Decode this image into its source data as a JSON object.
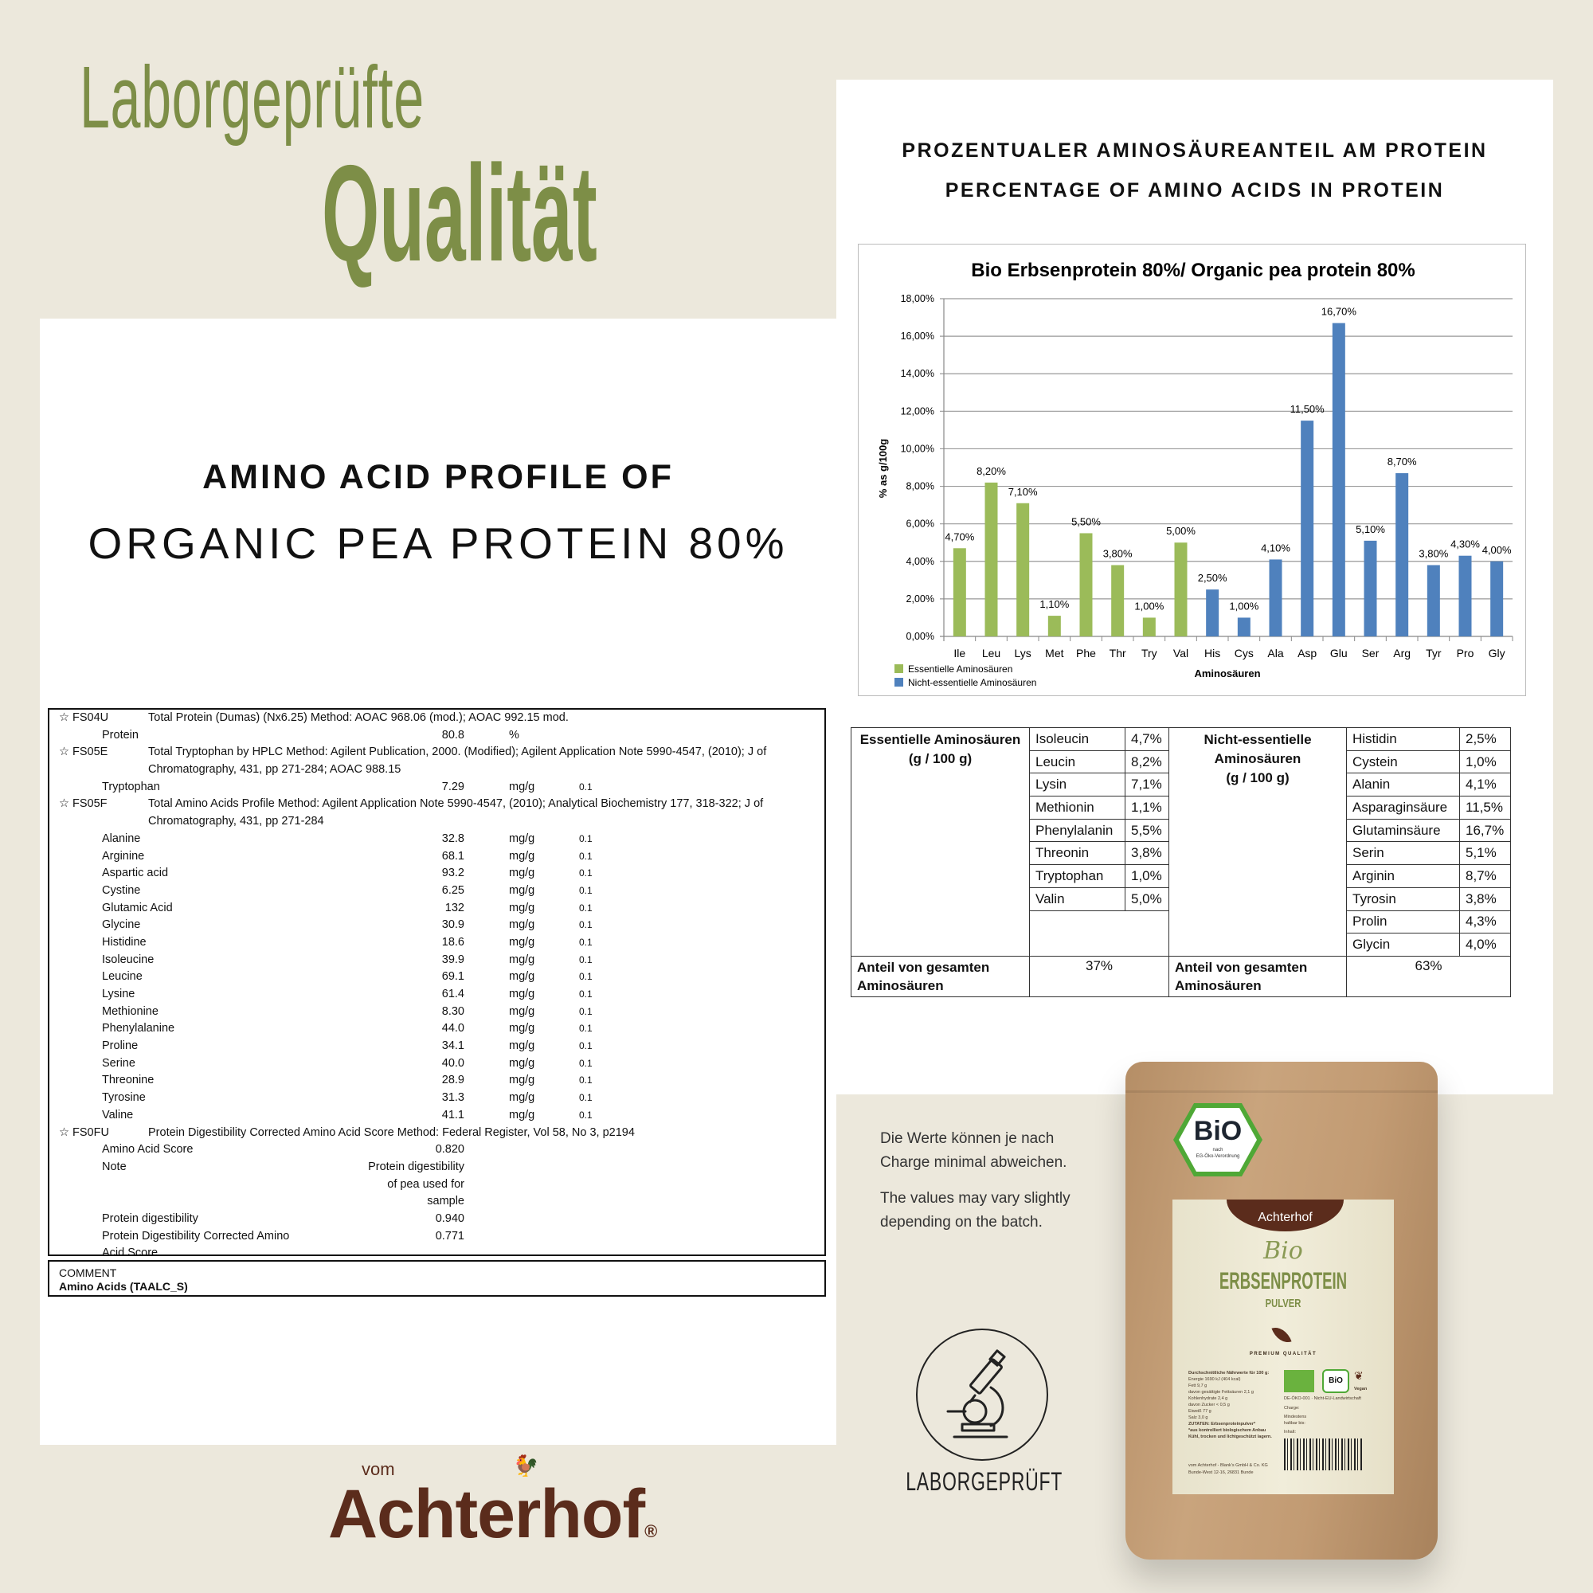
{
  "headline": {
    "line1": "Laborgeprüfte",
    "line2": "Qualität"
  },
  "left": {
    "heading1": "AMINO ACID PROFILE OF",
    "heading2": "ORGANIC PEA PROTEIN 80%"
  },
  "right": {
    "heading1": "PROZENTUALER AMINOSÄUREANTEIL AM PROTEIN",
    "heading2": "PERCENTAGE OF AMINO ACIDS IN PROTEIN"
  },
  "lab_report": {
    "rows": [
      {
        "code": "☆ FS04U",
        "text": "Total Protein (Dumas) (Nx6.25)    Method: AOAC 968.06 (mod.); AOAC 992.15 mod."
      },
      {
        "name": "Protein",
        "value": "80.8",
        "unit": "%",
        "loq": ""
      },
      {
        "code": "☆ FS05E",
        "text": "Total Tryptophan by HPLC    Method: Agilent Publication, 2000. (Modified); Agilent Application Note 5990-4547, (2010); J of"
      },
      {
        "code": "",
        "text": "Chromatography, 431, pp 271-284; AOAC 988.15"
      },
      {
        "name": "Tryptophan",
        "value": "7.29",
        "unit": "mg/g",
        "loq": "0.1"
      },
      {
        "code": "☆ FS05F",
        "text": "Total Amino Acids Profile    Method: Agilent Application Note 5990-4547, (2010); Analytical Biochemistry 177, 318-322; J of"
      },
      {
        "code": "",
        "text": "Chromatography, 431, pp 271-284"
      },
      {
        "name": "Alanine",
        "value": "32.8",
        "unit": "mg/g",
        "loq": "0.1"
      },
      {
        "name": "Arginine",
        "value": "68.1",
        "unit": "mg/g",
        "loq": "0.1"
      },
      {
        "name": "Aspartic acid",
        "value": "93.2",
        "unit": "mg/g",
        "loq": "0.1"
      },
      {
        "name": "Cystine",
        "value": "6.25",
        "unit": "mg/g",
        "loq": "0.1"
      },
      {
        "name": "Glutamic Acid",
        "value": "132",
        "unit": "mg/g",
        "loq": "0.1"
      },
      {
        "name": "Glycine",
        "value": "30.9",
        "unit": "mg/g",
        "loq": "0.1"
      },
      {
        "name": "Histidine",
        "value": "18.6",
        "unit": "mg/g",
        "loq": "0.1"
      },
      {
        "name": "Isoleucine",
        "value": "39.9",
        "unit": "mg/g",
        "loq": "0.1"
      },
      {
        "name": "Leucine",
        "value": "69.1",
        "unit": "mg/g",
        "loq": "0.1"
      },
      {
        "name": "Lysine",
        "value": "61.4",
        "unit": "mg/g",
        "loq": "0.1"
      },
      {
        "name": "Methionine",
        "value": "8.30",
        "unit": "mg/g",
        "loq": "0.1"
      },
      {
        "name": "Phenylalanine",
        "value": "44.0",
        "unit": "mg/g",
        "loq": "0.1"
      },
      {
        "name": "Proline",
        "value": "34.1",
        "unit": "mg/g",
        "loq": "0.1"
      },
      {
        "name": "Serine",
        "value": "40.0",
        "unit": "mg/g",
        "loq": "0.1"
      },
      {
        "name": "Threonine",
        "value": "28.9",
        "unit": "mg/g",
        "loq": "0.1"
      },
      {
        "name": "Tyrosine",
        "value": "31.3",
        "unit": "mg/g",
        "loq": "0.1"
      },
      {
        "name": "Valine",
        "value": "41.1",
        "unit": "mg/g",
        "loq": "0.1"
      },
      {
        "code": "☆ FS0FU",
        "text": "Protein Digestibility Corrected Amino Acid Score    Method: Federal Register, Vol 58, No 3, p2194"
      },
      {
        "name": "Amino Acid Score",
        "value": "0.820",
        "unit": "",
        "loq": ""
      },
      {
        "name": "Note",
        "value": "Protein digestibility",
        "unit": "",
        "loq": ""
      },
      {
        "name": "",
        "value": "of pea used for",
        "unit": "",
        "loq": ""
      },
      {
        "name": "",
        "value": "sample",
        "unit": "",
        "loq": ""
      },
      {
        "name": "Protein digestibility",
        "value": "0.940",
        "unit": "",
        "loq": ""
      },
      {
        "name": "Protein Digestibility Corrected Amino",
        "value": "0.771",
        "unit": "",
        "loq": ""
      },
      {
        "name": "Acid Score",
        "value": "",
        "unit": "",
        "loq": ""
      }
    ],
    "comment_label": "COMMENT",
    "comment_value": "Amino Acids (TAALC_S)"
  },
  "chart_data": {
    "type": "bar",
    "title": "Bio Erbsenprotein  80%/ Organic pea protein 80%",
    "xlabel": "Aminosäuren",
    "ylabel": "% as g/100g",
    "ylim": [
      0,
      18
    ],
    "yticks": [
      "0,00%",
      "2,00%",
      "4,00%",
      "6,00%",
      "8,00%",
      "10,00%",
      "12,00%",
      "14,00%",
      "16,00%",
      "18,00%"
    ],
    "grid": true,
    "legend_placement": "bottom-left",
    "categories": [
      "Ile",
      "Leu",
      "Lys",
      "Met",
      "Phe",
      "Thr",
      "Try",
      "Val",
      "His",
      "Cys",
      "Ala",
      "Asp",
      "Glu",
      "Ser",
      "Arg",
      "Tyr",
      "Pro",
      "Gly"
    ],
    "values": [
      4.7,
      8.2,
      7.1,
      1.1,
      5.5,
      3.8,
      1.0,
      5.0,
      2.5,
      1.0,
      4.1,
      11.5,
      16.7,
      5.1,
      8.7,
      3.8,
      4.3,
      4.0
    ],
    "data_labels": [
      "4,70%",
      "8,20%",
      "7,10%",
      "1,10%",
      "5,50%",
      "3,80%",
      "1,00%",
      "5,00%",
      "2,50%",
      "1,00%",
      "4,10%",
      "11,50%",
      "16,70%",
      "5,10%",
      "8,70%",
      "3,80%",
      "4,30%",
      "4,00%"
    ],
    "groups": [
      "essential",
      "essential",
      "essential",
      "essential",
      "essential",
      "essential",
      "essential",
      "essential",
      "non",
      "non",
      "non",
      "non",
      "non",
      "non",
      "non",
      "non",
      "non",
      "non"
    ],
    "series": [
      {
        "name": "Essentielle Aminosäuren",
        "color": "#9bbb59"
      },
      {
        "name": "Nicht-essentielle Aminosäuren",
        "color": "#4f81bd"
      }
    ]
  },
  "amino_table": {
    "essential_header": "Essentielle Aminosäuren\n(g / 100 g)",
    "nonessential_header": "Nicht-essentielle\nAminosäuren\n(g / 100 g)",
    "essential": [
      [
        "Isoleucin",
        "4,7%"
      ],
      [
        "Leucin",
        "8,2%"
      ],
      [
        "Lysin",
        "7,1%"
      ],
      [
        "Methionin",
        "1,1%"
      ],
      [
        "Phenylalanin",
        "5,5%"
      ],
      [
        "Threonin",
        "3,8%"
      ],
      [
        "Tryptophan",
        "1,0%"
      ],
      [
        "Valin",
        "5,0%"
      ]
    ],
    "nonessential": [
      [
        "Histidin",
        "2,5%"
      ],
      [
        "Cystein",
        "1,0%"
      ],
      [
        "Alanin",
        "4,1%"
      ],
      [
        "Asparaginsäure",
        "11,5%"
      ],
      [
        "Glutaminsäure",
        "16,7%"
      ],
      [
        "Serin",
        "5,1%"
      ],
      [
        "Arginin",
        "8,7%"
      ],
      [
        "Tyrosin",
        "3,8%"
      ],
      [
        "Prolin",
        "4,3%"
      ],
      [
        "Glycin",
        "4,0%"
      ]
    ],
    "share_label": "Anteil von gesamten\nAminosäuren",
    "essential_share": "37%",
    "nonessential_share": "63%"
  },
  "disclaimer": {
    "de1": "Die Werte können je nach",
    "de2": "Charge minimal abweichen.",
    "en1": "The values may vary slightly",
    "en2": "depending on the batch."
  },
  "lab_badge": {
    "label": "LABORGEPRÜFT",
    "icon": "microscope-icon"
  },
  "logo": {
    "small": "vom",
    "name": "Achterhof",
    "mark": "®"
  },
  "bag": {
    "bio_seal": "BiO",
    "bio_seal_sub1": "nach",
    "bio_seal_sub2": "EG-Öko-Verordnung",
    "brand": "Achterhof",
    "script": "Bio",
    "product": "ERBSENPROTEIN",
    "subtitle": "PULVER",
    "premium": "PREMIUM QUALITÄT",
    "nutrition": [
      "Durchschnittliche Nährwerte für 100 g:",
      "Energie   1690 kJ (404 kcal)",
      "Fett   9,7 g",
      "davon gesättigte Fettsäuren   2,1 g",
      "Kohlenhydrate   2,4 g",
      "davon Zucker   < 0,5 g",
      "Eiweiß   77 g",
      "Salz   3,0 g",
      "ZUTATEN: Erbsenproteinpulver*",
      "*aus kontrolliert biologischem Anbau",
      "Kühl, trocken und lichtgeschützt lagern."
    ],
    "origin": "DE-ÖKO-001 · Nicht-EU-Landwirtschaft",
    "fields": [
      "Charge:",
      "Mindestens haltbar bis:",
      "Inhalt:"
    ],
    "vegan": "Vegan",
    "small_bio": "BiO",
    "address1": "vom Achterhof - Blank's GmbH & Co. KG",
    "address2": "Bunde-West 12-16, 26831 Bunde",
    "colors": {
      "kraft": "#c29b73",
      "label": "#efead6",
      "brown": "#5b2c1c",
      "green": "#7d8e47"
    }
  },
  "colors": {
    "background": "#ece8dc",
    "accent_green": "#7d8e47",
    "brand_brown": "#5b2c1c"
  }
}
